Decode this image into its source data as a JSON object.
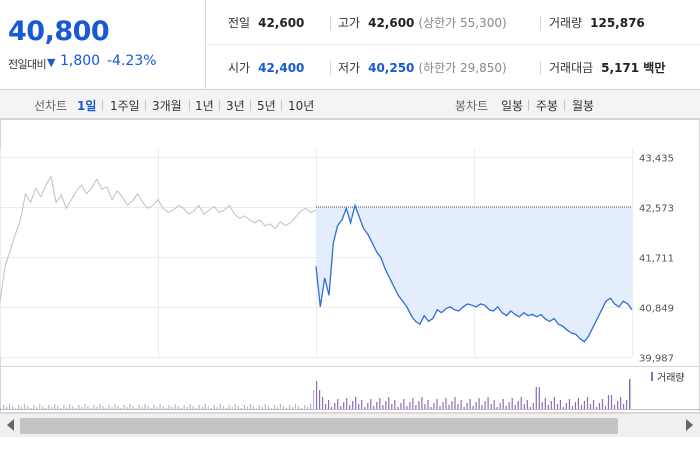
{
  "quote": {
    "price": "40,800",
    "change_label": "전일대비",
    "change_arrow": "▼",
    "change_abs": "1,800",
    "change_pct": "-4.23%",
    "prev_close_label": "전일",
    "prev_close": "42,600",
    "high_label": "고가",
    "high": "42,600",
    "upper_limit": "(상한가 55,300)",
    "volume_label": "거래량",
    "volume": "125,876",
    "open_label": "시가",
    "open": "42,400",
    "low_label": "저가",
    "low": "40,250",
    "lower_limit": "(하한가 29,850)",
    "value_label": "거래대금",
    "value": "5,171 백만"
  },
  "periods": {
    "line_label": "선차트",
    "line_options": [
      "1일",
      "1주일",
      "3개월",
      "1년",
      "3년",
      "5년",
      "10년"
    ],
    "active": "1일",
    "candle_label": "봉차트",
    "candle_options": [
      "일봉",
      "주봉",
      "월봉"
    ]
  },
  "colors": {
    "accent": "#1959d3",
    "line_today": "#2f6fd6",
    "fill_today": "#e3edfb",
    "line_prev": "#c0c0c0",
    "volume_bar": "#8a6db8"
  },
  "chart_data": {
    "type": "line",
    "y_ticks": [
      43435,
      42573,
      41711,
      40849,
      39987
    ],
    "ylim": [
      39987,
      43435
    ],
    "reference_line": 42573,
    "volume_legend": "거래량",
    "series": [
      {
        "values": [
          40950,
          41550,
          41820,
          42100,
          42350,
          42800,
          42650,
          42900,
          42750,
          42950,
          43100,
          42650,
          42780,
          42550,
          42700,
          42850,
          42950,
          42800,
          42900,
          43050,
          42880,
          42920,
          42700,
          42850,
          42750,
          42600,
          42680,
          42800,
          42650,
          42550,
          42600,
          42700,
          42550,
          42480,
          42520,
          42600,
          42550,
          42450,
          42500,
          42600,
          42450,
          42520,
          42580,
          42480,
          42520,
          42600,
          42450,
          42380,
          42420,
          42350,
          42300,
          42350,
          42250,
          42280,
          42200,
          42320,
          42250,
          42300,
          42400,
          42500,
          42550,
          42480,
          42520
        ]
      },
      {
        "values": [
          41550,
          40850,
          41350,
          41050,
          41950,
          42250,
          42350,
          42550,
          42300,
          42600,
          42400,
          42200,
          42100,
          41950,
          41800,
          41700,
          41500,
          41350,
          41200,
          41050,
          40950,
          40850,
          40700,
          40600,
          40550,
          40700,
          40600,
          40650,
          40800,
          40750,
          40820,
          40850,
          40800,
          40780,
          40850,
          40900,
          40880,
          40850,
          40900,
          40880,
          40800,
          40780,
          40850,
          40750,
          40700,
          40780,
          40720,
          40680,
          40750,
          40700,
          40720,
          40680,
          40720,
          40640,
          40600,
          40650,
          40550,
          40520,
          40450,
          40400,
          40380,
          40300,
          40250,
          40350,
          40500,
          40650,
          40800,
          40950,
          41000,
          40900,
          40850,
          40950,
          40900,
          40800
        ]
      }
    ]
  }
}
